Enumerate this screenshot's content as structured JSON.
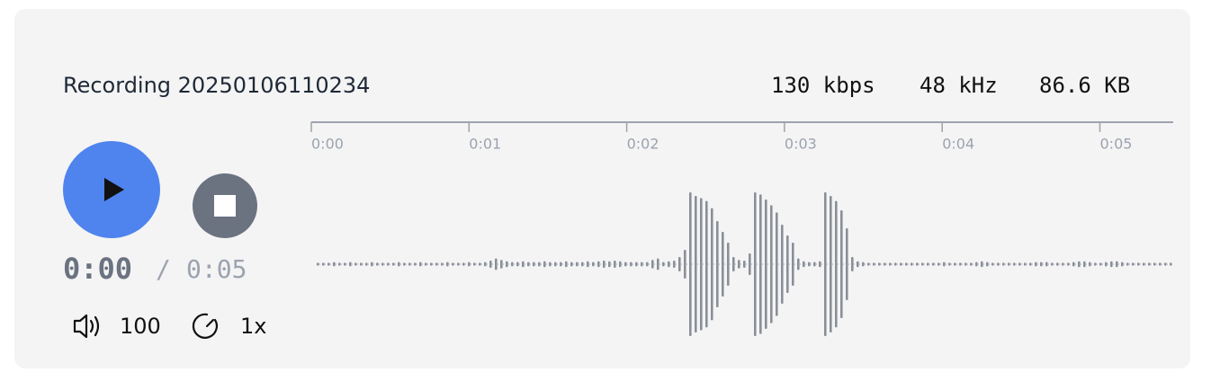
{
  "player": {
    "title": "Recording 20250106110234",
    "stats": [
      "130 kbps",
      "48 kHz",
      "86.6 KB"
    ],
    "current_time": "0:00",
    "separator": "/",
    "duration": "0:05",
    "volume": 100,
    "speed": "1x",
    "timeline": {
      "ticks": [
        {
          "value": 0,
          "label": "0:00"
        },
        {
          "value": 1,
          "label": "0:01"
        },
        {
          "value": 2,
          "label": "0:02"
        },
        {
          "value": 3,
          "label": "0:03"
        },
        {
          "value": 4,
          "label": "0:04"
        },
        {
          "value": 5,
          "label": "0:05"
        }
      ]
    },
    "waveform": [
      0.02,
      0.02,
      0.02,
      0.03,
      0.02,
      0.02,
      0.03,
      0.02,
      0.02,
      0.02,
      0.03,
      0.02,
      0.02,
      0.02,
      0.02,
      0.03,
      0.02,
      0.02,
      0.02,
      0.03,
      0.02,
      0.02,
      0.02,
      0.02,
      0.03,
      0.02,
      0.02,
      0.02,
      0.03,
      0.02,
      0.02,
      0.03,
      0.05,
      0.08,
      0.06,
      0.04,
      0.03,
      0.03,
      0.04,
      0.03,
      0.03,
      0.03,
      0.04,
      0.03,
      0.03,
      0.03,
      0.04,
      0.03,
      0.03,
      0.03,
      0.04,
      0.03,
      0.04,
      0.05,
      0.04,
      0.05,
      0.04,
      0.03,
      0.03,
      0.03,
      0.03,
      0.03,
      0.06,
      0.08,
      0.03,
      0.04,
      0.05,
      0.1,
      0.2,
      1.0,
      0.95,
      0.92,
      0.88,
      0.78,
      0.6,
      0.45,
      0.3,
      0.1,
      0.06,
      0.05,
      0.15,
      1.0,
      0.97,
      0.9,
      0.82,
      0.72,
      0.55,
      0.4,
      0.3,
      0.08,
      0.04,
      0.03,
      0.03,
      0.04,
      1.0,
      0.95,
      0.88,
      0.75,
      0.5,
      0.1,
      0.04,
      0.03,
      0.02,
      0.02,
      0.02,
      0.02,
      0.02,
      0.02,
      0.02,
      0.02,
      0.02,
      0.02,
      0.02,
      0.02,
      0.02,
      0.02,
      0.03,
      0.02,
      0.02,
      0.02,
      0.02,
      0.02,
      0.03,
      0.04,
      0.03,
      0.02,
      0.02,
      0.02,
      0.02,
      0.02,
      0.02,
      0.02,
      0.02,
      0.03,
      0.03,
      0.03,
      0.02,
      0.02,
      0.02,
      0.02,
      0.03,
      0.04,
      0.04,
      0.03,
      0.02,
      0.02,
      0.03,
      0.04,
      0.04,
      0.03,
      0.02,
      0.02,
      0.02,
      0.02,
      0.02,
      0.02,
      0.02,
      0.02,
      0.02
    ]
  }
}
